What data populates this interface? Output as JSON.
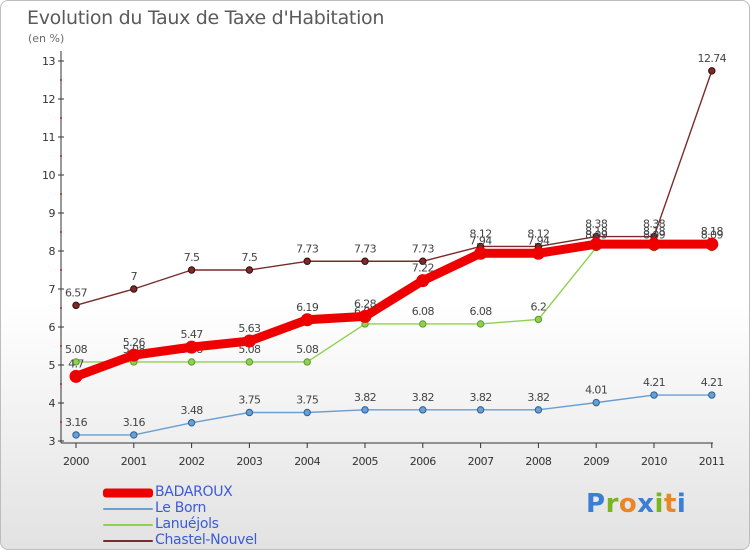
{
  "title": "Evolution du Taux de Taxe d'Habitation",
  "unit_label": "(en %)",
  "logo": {
    "text": "Proxiti",
    "letter_colors": [
      "#3a7fd5",
      "#7ab51d",
      "#e8862a",
      "#3a7fd5",
      "#7ab51d",
      "#e8862a",
      "#3a7fd5"
    ]
  },
  "chart_data": {
    "type": "line",
    "title": "Evolution du Taux de Taxe d'Habitation",
    "ylabel": "(en %)",
    "xlabel": "",
    "categories": [
      "2000",
      "2001",
      "2002",
      "2003",
      "2004",
      "2005",
      "2006",
      "2007",
      "2008",
      "2009",
      "2010",
      "2011"
    ],
    "ylim": [
      3,
      13
    ],
    "yticks": [
      "3",
      "4",
      "5",
      "6",
      "7",
      "8",
      "9",
      "10",
      "11",
      "12",
      "13"
    ],
    "grid": false,
    "legend_position": "bottom-left",
    "series": [
      {
        "name": "Chastel-Nouvel",
        "color": "#7a2a2a",
        "values": [
          6.57,
          7,
          7.5,
          7.5,
          7.73,
          7.73,
          7.73,
          8.12,
          8.12,
          8.38,
          8.38,
          12.74
        ],
        "labels": [
          "6.57",
          "7",
          "7.5",
          "7.5",
          "7.73",
          "7.73",
          "7.73",
          "8.12",
          "8.12",
          "8.38",
          "8.38",
          "12.74"
        ]
      },
      {
        "name": "Lanuéjols",
        "color": "#8fd14f",
        "values": [
          5.08,
          5.08,
          5.08,
          5.08,
          5.08,
          6.08,
          6.08,
          6.08,
          6.2,
          8.09,
          8.09,
          8.09
        ],
        "labels": [
          "5.08",
          "5.08",
          "5.08",
          "5.08",
          "5.08",
          "6.08",
          "6.08",
          "6.08",
          "6.2",
          "8.09",
          "8.09",
          "8.09"
        ]
      },
      {
        "name": "Le Born",
        "color": "#6a9fd0",
        "values": [
          3.16,
          3.16,
          3.48,
          3.75,
          3.75,
          3.82,
          3.82,
          3.82,
          3.82,
          4.01,
          4.21,
          4.21
        ],
        "labels": [
          "3.16",
          "3.16",
          "3.48",
          "3.75",
          "3.75",
          "3.82",
          "3.82",
          "3.82",
          "3.82",
          "4.01",
          "4.21",
          "4.21"
        ]
      },
      {
        "name": "BADAROUX",
        "color": "#ee0000",
        "values": [
          4.7,
          5.26,
          5.47,
          5.63,
          6.19,
          6.28,
          7.22,
          7.94,
          7.94,
          8.18,
          8.18,
          8.18
        ],
        "labels": [
          "4.7",
          "5.26",
          "5.47",
          "5.63",
          "6.19",
          "6.28",
          "7.22",
          "7.94",
          "7.94",
          "8.18",
          "8.18",
          "8.18"
        ]
      }
    ],
    "legend_order": [
      "BADAROUX",
      "Le Born",
      "Lanuéjols",
      "Chastel-Nouvel"
    ]
  }
}
